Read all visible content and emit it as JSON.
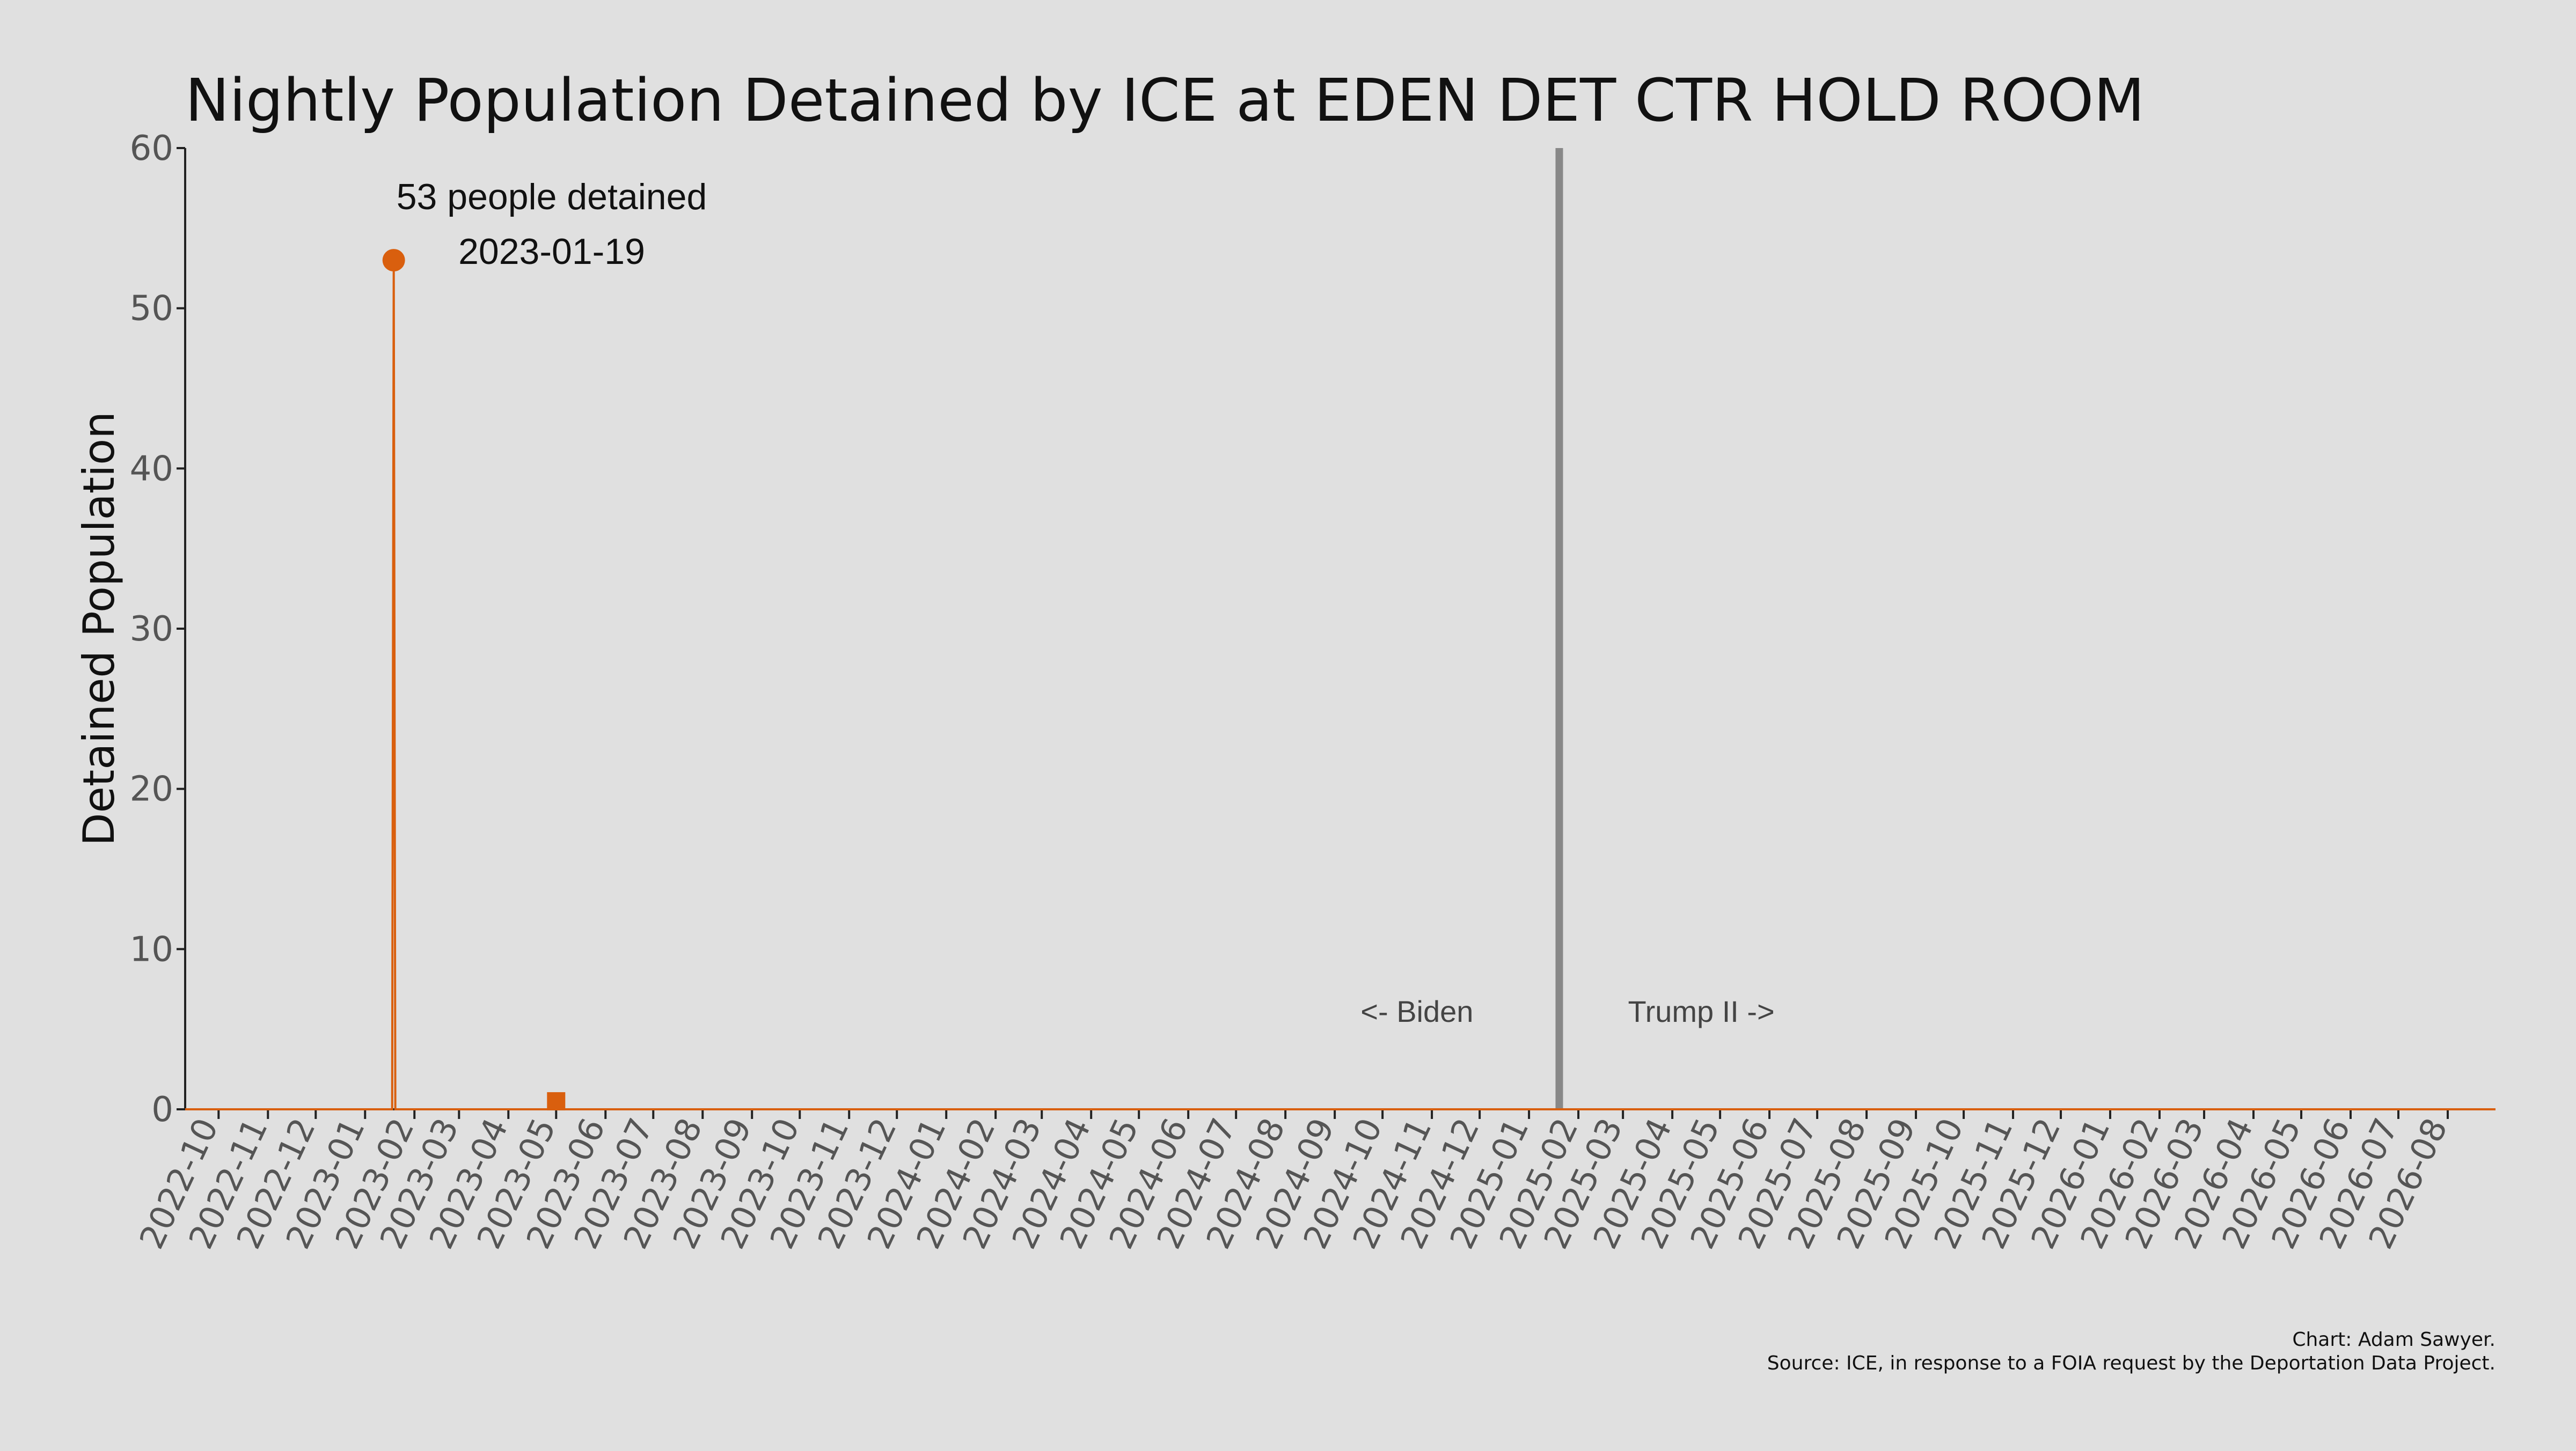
{
  "chart_data": {
    "type": "line",
    "title": "Nightly Population Detained by ICE at EDEN DET CTR HOLD ROOM",
    "ylabel": "Detained Population",
    "xlabel": "",
    "ylim": [
      0,
      60
    ],
    "xlim": [
      "2022-09-10",
      "2026-08-31"
    ],
    "yticks": [
      0,
      10,
      20,
      30,
      40,
      50,
      60
    ],
    "xticks": [
      "2022-10",
      "2022-11",
      "2022-12",
      "2023-01",
      "2023-02",
      "2023-03",
      "2023-04",
      "2023-05",
      "2023-06",
      "2023-07",
      "2023-08",
      "2023-09",
      "2023-10",
      "2023-11",
      "2023-12",
      "2024-01",
      "2024-02",
      "2024-03",
      "2024-04",
      "2024-05",
      "2024-06",
      "2024-07",
      "2024-08",
      "2024-09",
      "2024-10",
      "2024-11",
      "2024-12",
      "2025-01",
      "2025-02",
      "2025-03",
      "2025-04",
      "2025-05",
      "2025-06",
      "2025-07",
      "2025-08",
      "2025-09",
      "2025-10",
      "2025-11",
      "2025-12",
      "2026-01",
      "2026-02",
      "2026-03",
      "2026-04",
      "2026-05",
      "2026-06",
      "2026-07",
      "2026-08"
    ],
    "grid": false,
    "series": [
      {
        "color": "#d95f0e",
        "points": [
          {
            "x": "2022-09-10",
            "y": 0
          },
          {
            "x": "2023-01-18",
            "y": 0
          },
          {
            "x": "2023-01-19",
            "y": 53
          },
          {
            "x": "2023-01-20",
            "y": 0
          },
          {
            "x": "2026-08-31",
            "y": 0
          }
        ]
      }
    ],
    "markers": [
      {
        "x": "2023-01-19",
        "y": 53,
        "shape": "circle",
        "color": "#d95f0e"
      },
      {
        "x": "2023-05-01",
        "y": 0.5,
        "shape": "square",
        "color": "#d95f0e"
      }
    ],
    "divider": {
      "x": "2025-01-20",
      "color": "#888888"
    },
    "annotation": {
      "line1": "53 people detained",
      "line2": "2023-01-19"
    },
    "era_labels": {
      "left": "<- Biden",
      "right": "Trump II ->"
    }
  },
  "caption": {
    "line1": "Chart: Adam Sawyer.",
    "line2": "Source: ICE, in response to a FOIA request by the Deportation Data Project."
  }
}
